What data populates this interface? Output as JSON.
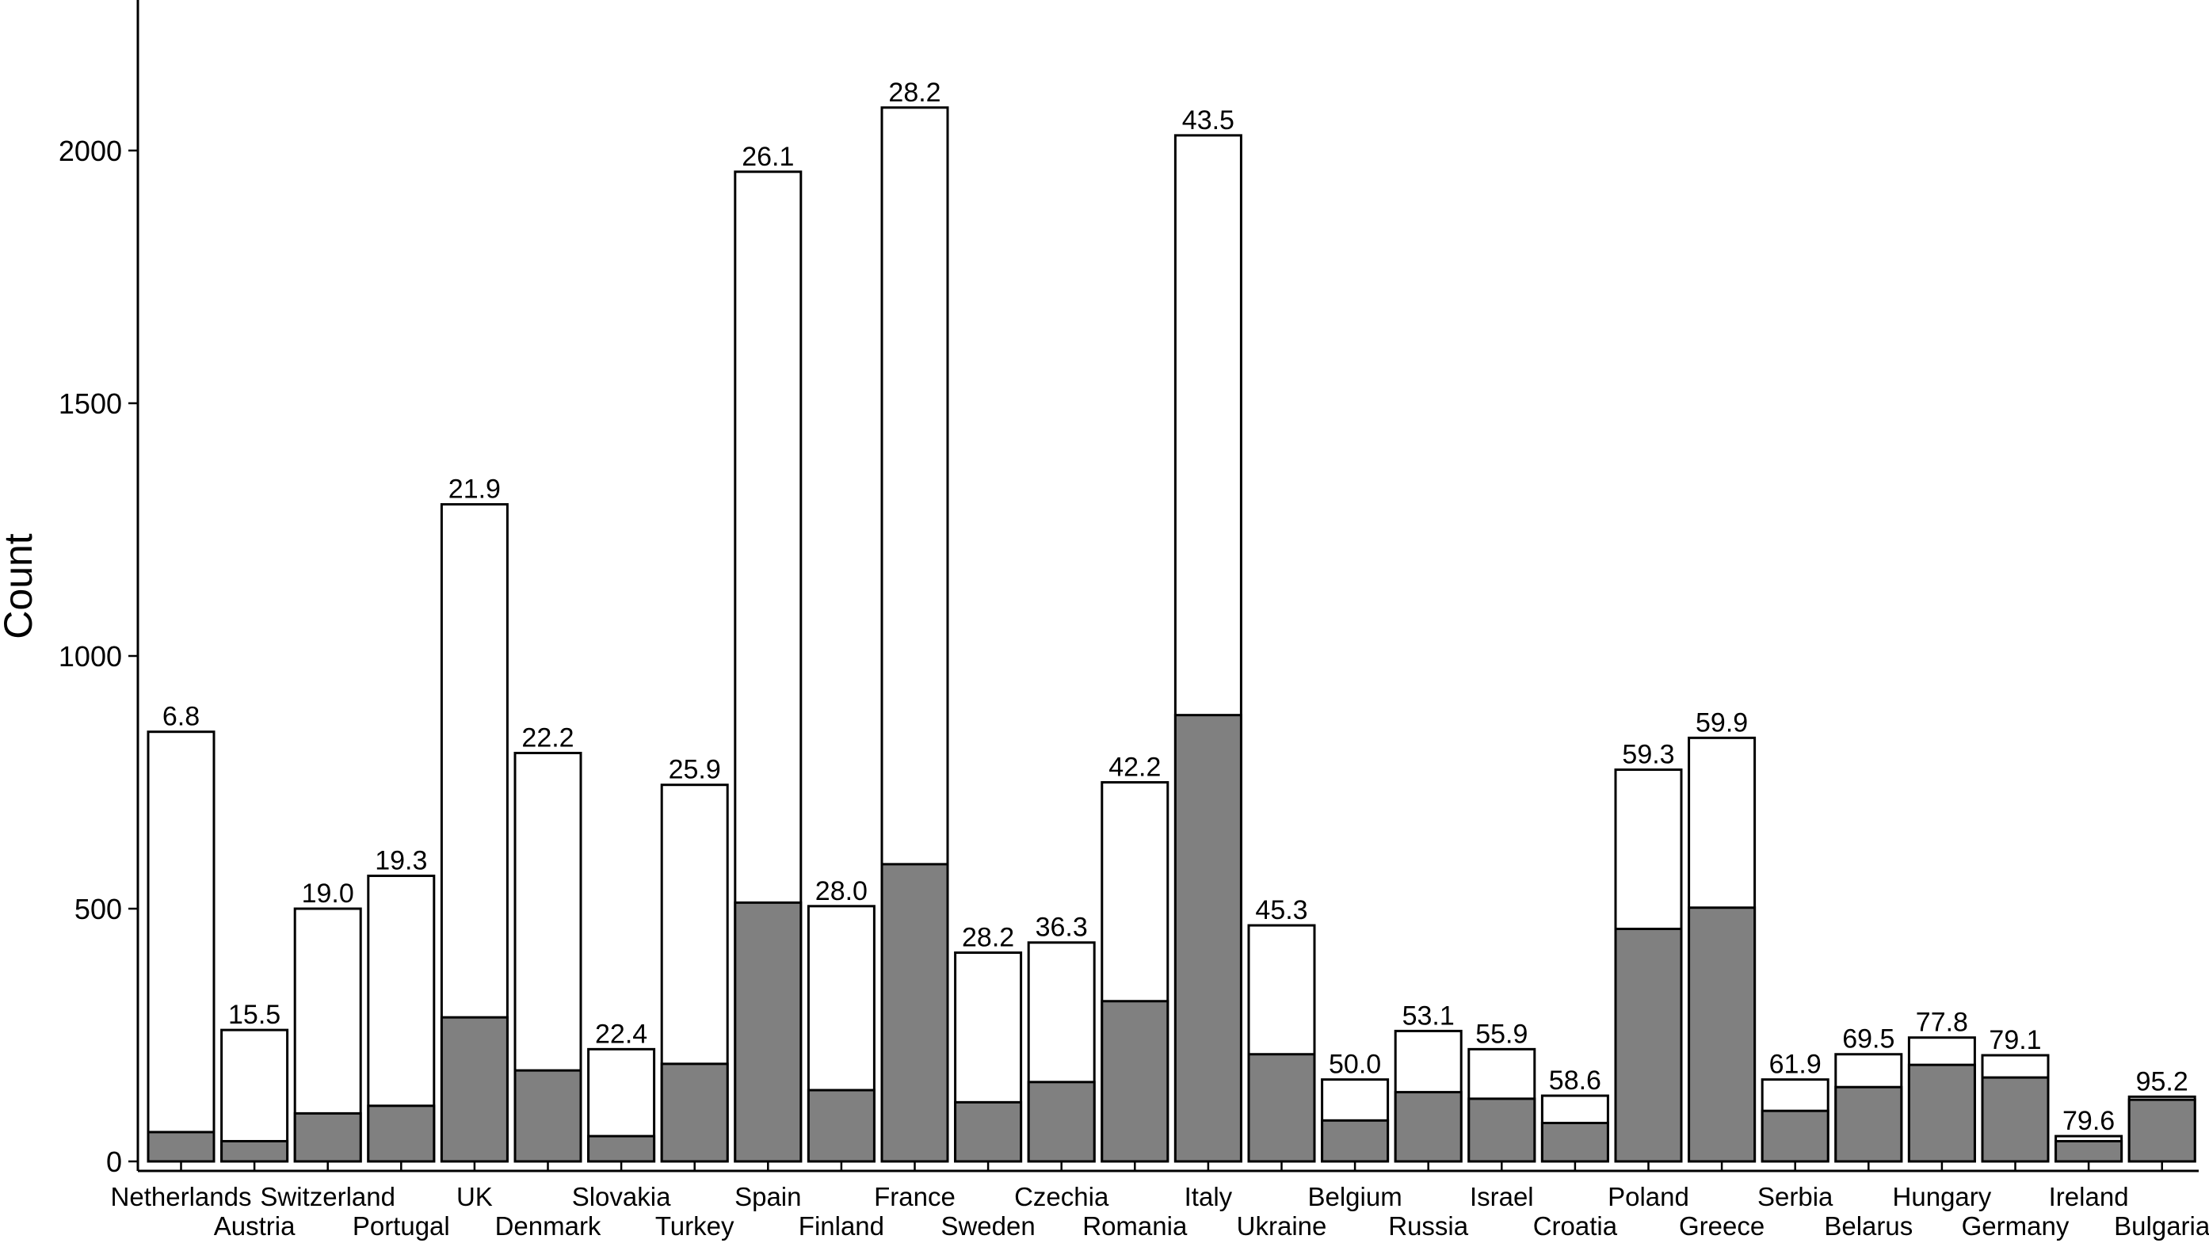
{
  "chart_data": {
    "type": "bar",
    "stacked": "overlay",
    "ylabel": "Count",
    "xlabel": "",
    "ylim": [
      0,
      2250
    ],
    "yticks": [
      0,
      500,
      1000,
      1500,
      2000
    ],
    "grid": false,
    "legend": "none",
    "colors": {
      "total_fill": "#ffffff",
      "subset_fill": "#808080",
      "outline": "#000000"
    },
    "categories": [
      "Netherlands",
      "Austria",
      "Switzerland",
      "Portugal",
      "UK",
      "Denmark",
      "Slovakia",
      "Turkey",
      "Spain",
      "Finland",
      "France",
      "Sweden",
      "Czechia",
      "Romania",
      "Italy",
      "Ukraine",
      "Belgium",
      "Russia",
      "Israel",
      "Croatia",
      "Poland",
      "Greece",
      "Serbia",
      "Belarus",
      "Hungary",
      "Germany",
      "Ireland",
      "Bulgaria"
    ],
    "series": [
      {
        "values": [
          850,
          260,
          500,
          565,
          1300,
          808,
          222,
          745,
          1958,
          505,
          2085,
          413,
          433,
          750,
          2030,
          467,
          162,
          258,
          222,
          130,
          775,
          838,
          162,
          212,
          245,
          210,
          50,
          128
        ]
      },
      {
        "values": [
          58,
          40,
          95,
          110,
          285,
          180,
          50,
          193,
          512,
          141,
          588,
          117,
          157,
          317,
          883,
          212,
          81,
          137,
          124,
          76,
          460,
          502,
          100,
          147,
          191,
          166,
          40,
          122
        ]
      }
    ],
    "data_labels": [
      "6.8",
      "15.5",
      "19.0",
      "19.3",
      "21.9",
      "22.2",
      "22.4",
      "25.9",
      "26.1",
      "28.0",
      "28.2",
      "28.2",
      "36.3",
      "42.2",
      "43.5",
      "45.3",
      "50.0",
      "53.1",
      "55.9",
      "58.6",
      "59.3",
      "59.9",
      "61.9",
      "69.5",
      "77.8",
      "79.1",
      "79.6",
      "95.2"
    ]
  }
}
